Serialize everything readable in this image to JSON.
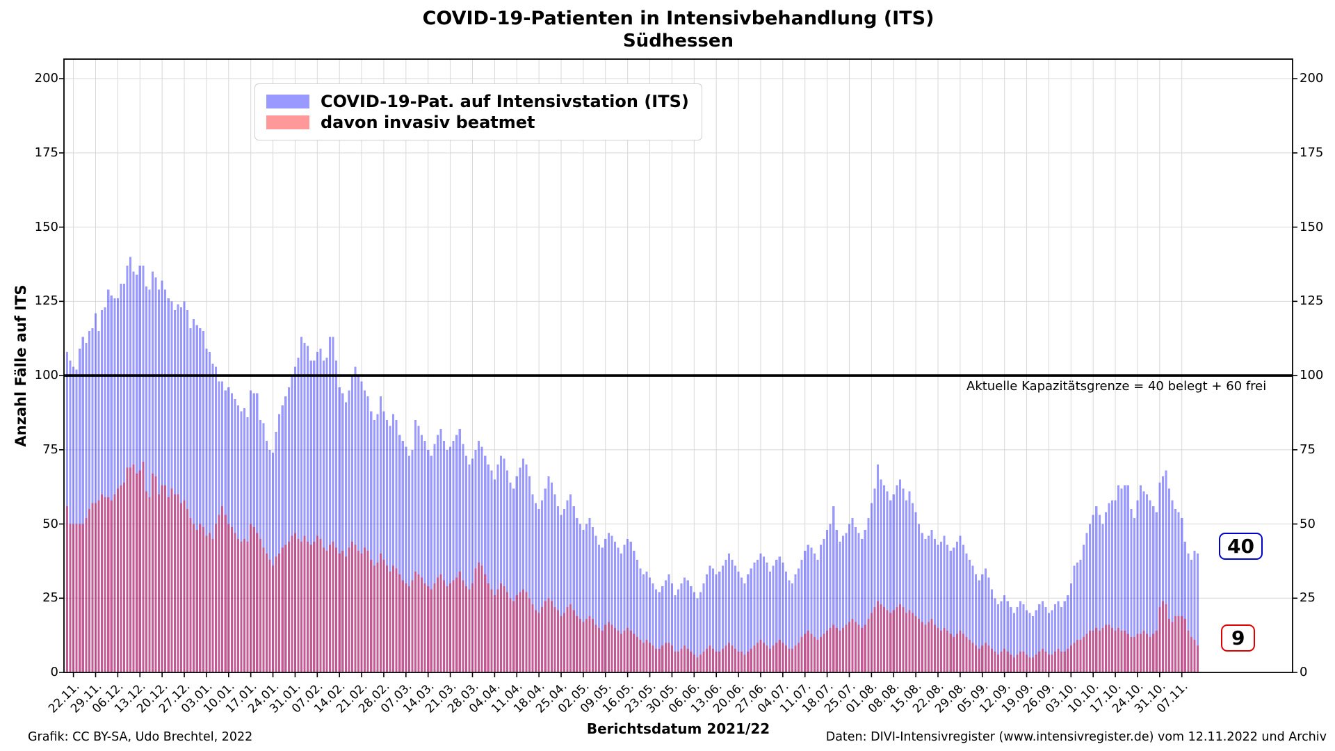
{
  "footer": {
    "left": "Grafik: CC BY-SA, Udo Brechtel, 2022",
    "right": "Daten: DIVI-Intensivregister (www.intensivregister.de) vom 12.11.2022 und Archiv"
  },
  "chart_data": {
    "type": "bar",
    "title": "COVID-19-Patienten in Intensivbehandlung (ITS)",
    "subtitle": "Südhessen",
    "ylabel": "Anzahl Fälle auf ITS",
    "xlabel": "Berichtsdatum 2021/22",
    "ylim": [
      0,
      206
    ],
    "y_ticks": [
      0,
      25,
      50,
      75,
      100,
      125,
      150,
      175,
      200
    ],
    "grid": true,
    "legend_position": "upper-left",
    "x_start_date": "20.11.2021",
    "x_end_date": "12.11.2022",
    "x_frequency": "daily",
    "x_tick_first_day_index": 2,
    "x_tick_step_days": 7,
    "x_tick_labels": [
      "22.11.",
      "29.11.",
      "06.12.",
      "13.12.",
      "20.12.",
      "27.12.",
      "03.01.",
      "10.01.",
      "17.01.",
      "24.01.",
      "31.01.",
      "07.02.",
      "14.02.",
      "21.02.",
      "28.02.",
      "07.03.",
      "14.03.",
      "21.03.",
      "28.03.",
      "04.04.",
      "11.04.",
      "18.04.",
      "25.04.",
      "02.05.",
      "09.05.",
      "16.05.",
      "23.05.",
      "30.05.",
      "06.06.",
      "13.06.",
      "20.06.",
      "27.06.",
      "04.07.",
      "11.07.",
      "18.07.",
      "25.07.",
      "01.08.",
      "08.08.",
      "15.08.",
      "22.08.",
      "29.08.",
      "05.09.",
      "12.09.",
      "19.09.",
      "26.09.",
      "03.10.",
      "10.10.",
      "17.10.",
      "24.10.",
      "31.10.",
      "07.11."
    ],
    "capacity_line": {
      "value": 100,
      "color": "#000000",
      "annotation": "Aktuelle Kapazitätsgrenze = 40 belegt + 60 frei"
    },
    "end_value_labels": {
      "its": {
        "text": "40",
        "border_color": "#0000cc"
      },
      "beatmet": {
        "text": "9",
        "border_color": "#e00000"
      }
    },
    "grid_color": "#d8d8d8",
    "series": [
      {
        "name": "COVID-19-Pat. auf Intensivstation (ITS)",
        "color": "#0000ff",
        "fill_opacity": 0.4,
        "legend_swatch": "#9999ff",
        "values": [
          108,
          105,
          103,
          102,
          109,
          113,
          111,
          115,
          116,
          121,
          115,
          122,
          123,
          129,
          127,
          126,
          126,
          131,
          131,
          137,
          140,
          135,
          134,
          137,
          137,
          130,
          129,
          135,
          133,
          129,
          132,
          129,
          126,
          125,
          122,
          124,
          123,
          125,
          122,
          116,
          119,
          117,
          116,
          115,
          109,
          108,
          104,
          103,
          98,
          98,
          95,
          96,
          94,
          92,
          90,
          88,
          89,
          86,
          95,
          94,
          94,
          85,
          84,
          78,
          75,
          74,
          81,
          87,
          90,
          93,
          96,
          100,
          103,
          106,
          113,
          111,
          110,
          105,
          105,
          108,
          109,
          105,
          106,
          113,
          113,
          105,
          96,
          94,
          91,
          95,
          100,
          103,
          100,
          98,
          95,
          93,
          88,
          85,
          87,
          93,
          88,
          85,
          83,
          87,
          85,
          80,
          78,
          76,
          73,
          75,
          85,
          83,
          80,
          78,
          75,
          73,
          77,
          80,
          82,
          78,
          75,
          76,
          78,
          80,
          82,
          77,
          73,
          70,
          72,
          75,
          78,
          76,
          73,
          70,
          68,
          65,
          70,
          73,
          72,
          68,
          64,
          62,
          66,
          69,
          72,
          70,
          66,
          60,
          57,
          55,
          58,
          62,
          66,
          64,
          60,
          56,
          53,
          55,
          58,
          60,
          56,
          52,
          50,
          48,
          50,
          52,
          49,
          46,
          43,
          42,
          45,
          47,
          46,
          44,
          42,
          40,
          43,
          45,
          44,
          41,
          38,
          35,
          33,
          34,
          32,
          30,
          28,
          27,
          29,
          31,
          33,
          30,
          26,
          28,
          30,
          32,
          31,
          29,
          27,
          25,
          27,
          30,
          33,
          36,
          35,
          33,
          34,
          36,
          38,
          40,
          38,
          36,
          34,
          32,
          30,
          33,
          35,
          37,
          38,
          40,
          39,
          37,
          34,
          36,
          38,
          39,
          37,
          34,
          31,
          30,
          33,
          35,
          38,
          41,
          43,
          42,
          40,
          38,
          43,
          45,
          48,
          50,
          56,
          48,
          44,
          46,
          47,
          50,
          52,
          49,
          47,
          45,
          48,
          52,
          57,
          62,
          70,
          65,
          63,
          61,
          58,
          60,
          63,
          65,
          62,
          58,
          61,
          57,
          54,
          50,
          47,
          45,
          46,
          48,
          45,
          43,
          44,
          46,
          43,
          41,
          42,
          44,
          46,
          43,
          40,
          38,
          36,
          33,
          31,
          33,
          35,
          32,
          28,
          25,
          23,
          24,
          26,
          24,
          22,
          20,
          22,
          24,
          23,
          21,
          20,
          19,
          21,
          23,
          24,
          22,
          20,
          21,
          23,
          24,
          22,
          24,
          26,
          30,
          36,
          37,
          38,
          43,
          47,
          50,
          53,
          56,
          53,
          50,
          54,
          57,
          58,
          58,
          63,
          62,
          63,
          63,
          55,
          52,
          58,
          63,
          61,
          60,
          58,
          56,
          54,
          64,
          66,
          68,
          62,
          58,
          55,
          54,
          52,
          44,
          40,
          38,
          41,
          40
        ]
      },
      {
        "name": "davon invasiv beatmet",
        "color": "#ff0000",
        "fill_opacity": 0.42,
        "legend_swatch": "#ff9999",
        "values": [
          56,
          50,
          50,
          50,
          50,
          50,
          52,
          55,
          57,
          57,
          58,
          60,
          59,
          59,
          58,
          60,
          62,
          63,
          64,
          69,
          69,
          70,
          67,
          68,
          71,
          61,
          59,
          67,
          66,
          60,
          63,
          63,
          59,
          62,
          60,
          60,
          57,
          58,
          55,
          52,
          50,
          48,
          50,
          49,
          46,
          47,
          45,
          50,
          53,
          56,
          53,
          50,
          49,
          47,
          45,
          44,
          45,
          44,
          50,
          49,
          47,
          45,
          42,
          40,
          38,
          36,
          39,
          40,
          42,
          43,
          44,
          46,
          47,
          45,
          44,
          46,
          44,
          43,
          44,
          46,
          45,
          42,
          41,
          43,
          44,
          42,
          40,
          41,
          39,
          42,
          44,
          43,
          41,
          40,
          42,
          41,
          38,
          36,
          37,
          40,
          38,
          36,
          34,
          36,
          35,
          33,
          31,
          30,
          29,
          31,
          34,
          33,
          32,
          30,
          29,
          28,
          30,
          32,
          33,
          31,
          29,
          30,
          31,
          32,
          34,
          31,
          29,
          28,
          30,
          35,
          37,
          36,
          33,
          30,
          28,
          26,
          28,
          30,
          29,
          27,
          25,
          24,
          26,
          27,
          28,
          27,
          25,
          23,
          21,
          20,
          22,
          24,
          25,
          24,
          22,
          21,
          19,
          20,
          22,
          23,
          21,
          19,
          18,
          17,
          18,
          19,
          18,
          16,
          15,
          14,
          16,
          17,
          16,
          15,
          14,
          13,
          14,
          15,
          14,
          13,
          12,
          11,
          10,
          11,
          10,
          9,
          8,
          8,
          9,
          10,
          10,
          9,
          7,
          7,
          8,
          9,
          8,
          7,
          6,
          5,
          6,
          7,
          8,
          9,
          8,
          7,
          7,
          8,
          9,
          10,
          9,
          8,
          7,
          7,
          6,
          7,
          8,
          9,
          10,
          11,
          10,
          9,
          8,
          9,
          10,
          11,
          10,
          9,
          8,
          8,
          9,
          10,
          12,
          13,
          14,
          13,
          12,
          11,
          12,
          13,
          14,
          15,
          16,
          15,
          14,
          15,
          16,
          17,
          18,
          17,
          16,
          15,
          16,
          18,
          20,
          22,
          24,
          23,
          22,
          21,
          20,
          21,
          22,
          23,
          22,
          20,
          21,
          20,
          19,
          18,
          17,
          16,
          17,
          18,
          16,
          15,
          14,
          15,
          14,
          13,
          12,
          13,
          14,
          13,
          12,
          11,
          10,
          9,
          8,
          9,
          10,
          9,
          8,
          7,
          6,
          7,
          8,
          7,
          6,
          5,
          6,
          7,
          7,
          6,
          5,
          5,
          6,
          7,
          8,
          7,
          6,
          6,
          7,
          8,
          7,
          7,
          8,
          9,
          10,
          11,
          11,
          12,
          13,
          14,
          14,
          15,
          14,
          15,
          16,
          16,
          15,
          14,
          15,
          14,
          14,
          13,
          12,
          12,
          13,
          13,
          14,
          13,
          12,
          13,
          14,
          22,
          24,
          23,
          18,
          17,
          19,
          19,
          19,
          18,
          14,
          12,
          11,
          9
        ]
      }
    ]
  }
}
